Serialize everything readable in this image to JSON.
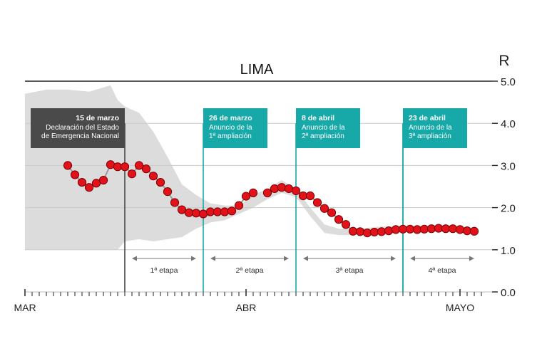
{
  "chart_data": {
    "type": "scatter",
    "title": "LIMA",
    "ylabel": "R",
    "ylim": [
      0,
      5
    ],
    "y_ticks": [
      "0.0",
      "1.0",
      "2.0",
      "3.0",
      "4.0",
      "5.0"
    ],
    "y_tick_values": [
      0,
      1,
      2,
      3,
      4,
      5
    ],
    "x_month_labels": [
      {
        "label": "MAR",
        "day": 0
      },
      {
        "label": "ABR",
        "day": 31
      },
      {
        "label": "MAYO",
        "day": 61
      }
    ],
    "x_range_days": [
      0,
      64
    ],
    "grid": true,
    "legend": "none",
    "series": [
      {
        "x": [
          6,
          7,
          8,
          9,
          10,
          11,
          12,
          13,
          14,
          15,
          16,
          17,
          18,
          19,
          20,
          21,
          22,
          23,
          24,
          25,
          26,
          27,
          28,
          29,
          30,
          31,
          32,
          33,
          34,
          35,
          36,
          37,
          38,
          39,
          40,
          41,
          42,
          43,
          44,
          45,
          46,
          47,
          48,
          49,
          50,
          51,
          52,
          53,
          54,
          55,
          56,
          57,
          58,
          59,
          60,
          61,
          62,
          63
        ],
        "y": [
          3.0,
          2.78,
          2.6,
          2.48,
          2.58,
          2.65,
          3.02,
          2.97,
          2.97,
          2.8,
          3.0,
          2.92,
          2.75,
          2.6,
          2.38,
          2.12,
          1.95,
          1.88,
          1.87,
          1.85,
          1.9,
          1.9,
          1.9,
          1.92,
          2.05,
          2.27,
          2.35,
          null,
          2.35,
          2.45,
          2.48,
          2.45,
          2.4,
          2.28,
          2.28,
          2.12,
          1.98,
          1.88,
          1.72,
          1.6,
          1.44,
          1.43,
          1.4,
          1.42,
          1.43,
          1.45,
          1.48,
          1.49,
          1.49,
          1.48,
          1.49,
          1.5,
          1.51,
          1.5,
          1.5,
          1.48,
          1.45,
          1.44
        ]
      }
    ],
    "confidence_band": {
      "x": [
        0,
        3,
        6,
        9,
        12,
        13,
        14,
        16,
        18,
        20,
        22,
        24,
        26,
        28,
        30,
        32,
        34,
        36,
        38,
        40,
        42,
        44,
        46,
        48,
        50,
        52,
        54,
        56,
        58,
        60,
        63
      ],
      "upper": [
        4.7,
        4.8,
        4.8,
        4.75,
        4.9,
        4.55,
        4.4,
        4.25,
        3.8,
        3.2,
        2.55,
        2.3,
        2.1,
        2.05,
        2.05,
        2.3,
        2.45,
        2.65,
        2.45,
        2.0,
        1.6,
        1.5,
        1.5,
        1.52,
        1.55,
        1.55,
        1.55,
        1.55,
        1.55,
        1.55,
        1.52
      ],
      "lower": [
        1.0,
        1.0,
        1.0,
        1.0,
        1.0,
        1.0,
        1.2,
        1.25,
        1.2,
        1.25,
        1.3,
        1.5,
        1.65,
        1.7,
        1.85,
        2.0,
        2.2,
        2.35,
        2.25,
        1.8,
        1.4,
        1.35,
        1.35,
        1.4,
        1.42,
        1.44,
        1.43,
        1.44,
        1.44,
        1.44,
        1.42
      ]
    },
    "events": [
      {
        "day": 14,
        "date": "15 de marzo",
        "lines": [
          "Declaración del Estado",
          "de Emergencia Nacional"
        ],
        "color": "#4a4a4a",
        "align": "end"
      },
      {
        "day": 25,
        "date": "26 de marzo",
        "lines": [
          "Anuncio de la",
          "1ª ampliación"
        ],
        "color": "#17a8a8",
        "align": "start"
      },
      {
        "day": 38,
        "date": "8 de abril",
        "lines": [
          "Anuncio de la",
          "2ª ampliación"
        ],
        "color": "#17a8a8",
        "align": "start"
      },
      {
        "day": 53,
        "date": "23 de abril",
        "lines": [
          "Anuncio de la",
          "3ª ampliación"
        ],
        "color": "#17a8a8",
        "align": "start"
      },
      {
        "day": 53,
        "date": "",
        "lines": [],
        "color": "#17a8a8",
        "align": "start"
      }
    ],
    "stages": [
      {
        "label": "1ª etapa",
        "from": 15,
        "to": 24
      },
      {
        "label": "2ª etapa",
        "from": 26,
        "to": 37
      },
      {
        "label": "3ª etapa",
        "from": 39,
        "to": 52
      },
      {
        "label": "4ª etapa",
        "from": 54,
        "to": 63
      }
    ],
    "colors": {
      "point_fill": "#e3121a",
      "point_stroke": "#7a0000",
      "line": "#9a9a9a",
      "band": "#dcdcdc",
      "axis": "#333333",
      "teal": "#17a8a8",
      "dark": "#4a4a4a"
    }
  }
}
